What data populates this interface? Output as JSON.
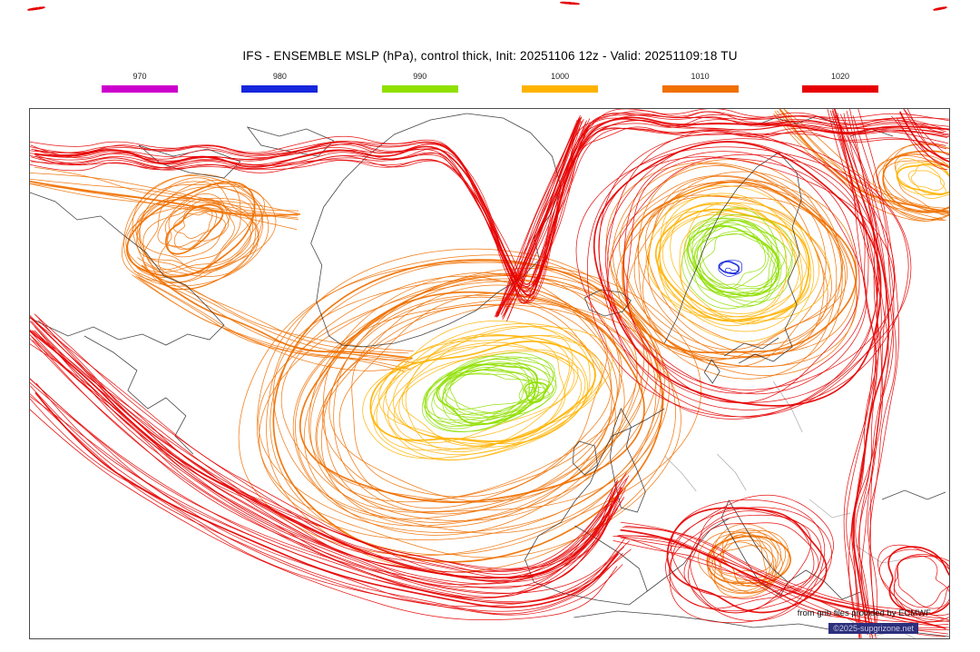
{
  "title": "IFS - ENSEMBLE MSLP (hPa), control thick, Init: 20251106 12z - Valid: 20251109:18 TU",
  "legend": {
    "entries": [
      {
        "label": "970",
        "color": "#cc00cc"
      },
      {
        "label": "980",
        "color": "#1626dc"
      },
      {
        "label": "990",
        "color": "#8fe000"
      },
      {
        "label": "1000",
        "color": "#ffb300"
      },
      {
        "label": "1010",
        "color": "#f07000"
      },
      {
        "label": "1020",
        "color": "#e60000"
      }
    ]
  },
  "map": {
    "credit_source": "from grib files provided by ECMWF",
    "credit_copyright": "©2025-supgrizone.net"
  },
  "chart_data": {
    "type": "line",
    "subtype": "ensemble-spaghetti-isobar-map",
    "title": "IFS - ENSEMBLE MSLP (hPa), control thick, Init: 20251106 12z - Valid: 20251109:18 TU",
    "model": "IFS - ENSEMBLE",
    "field": "MSLP (hPa)",
    "control": "control thick",
    "init": "20251106 12z",
    "valid": "20251109:18 TU",
    "levels_hPa": [
      970,
      980,
      990,
      1000,
      1010,
      1020
    ],
    "level_colors": [
      "#cc00cc",
      "#1626dc",
      "#8fe000",
      "#ffb300",
      "#f07000",
      "#e60000"
    ],
    "legend_position": "top"
  }
}
